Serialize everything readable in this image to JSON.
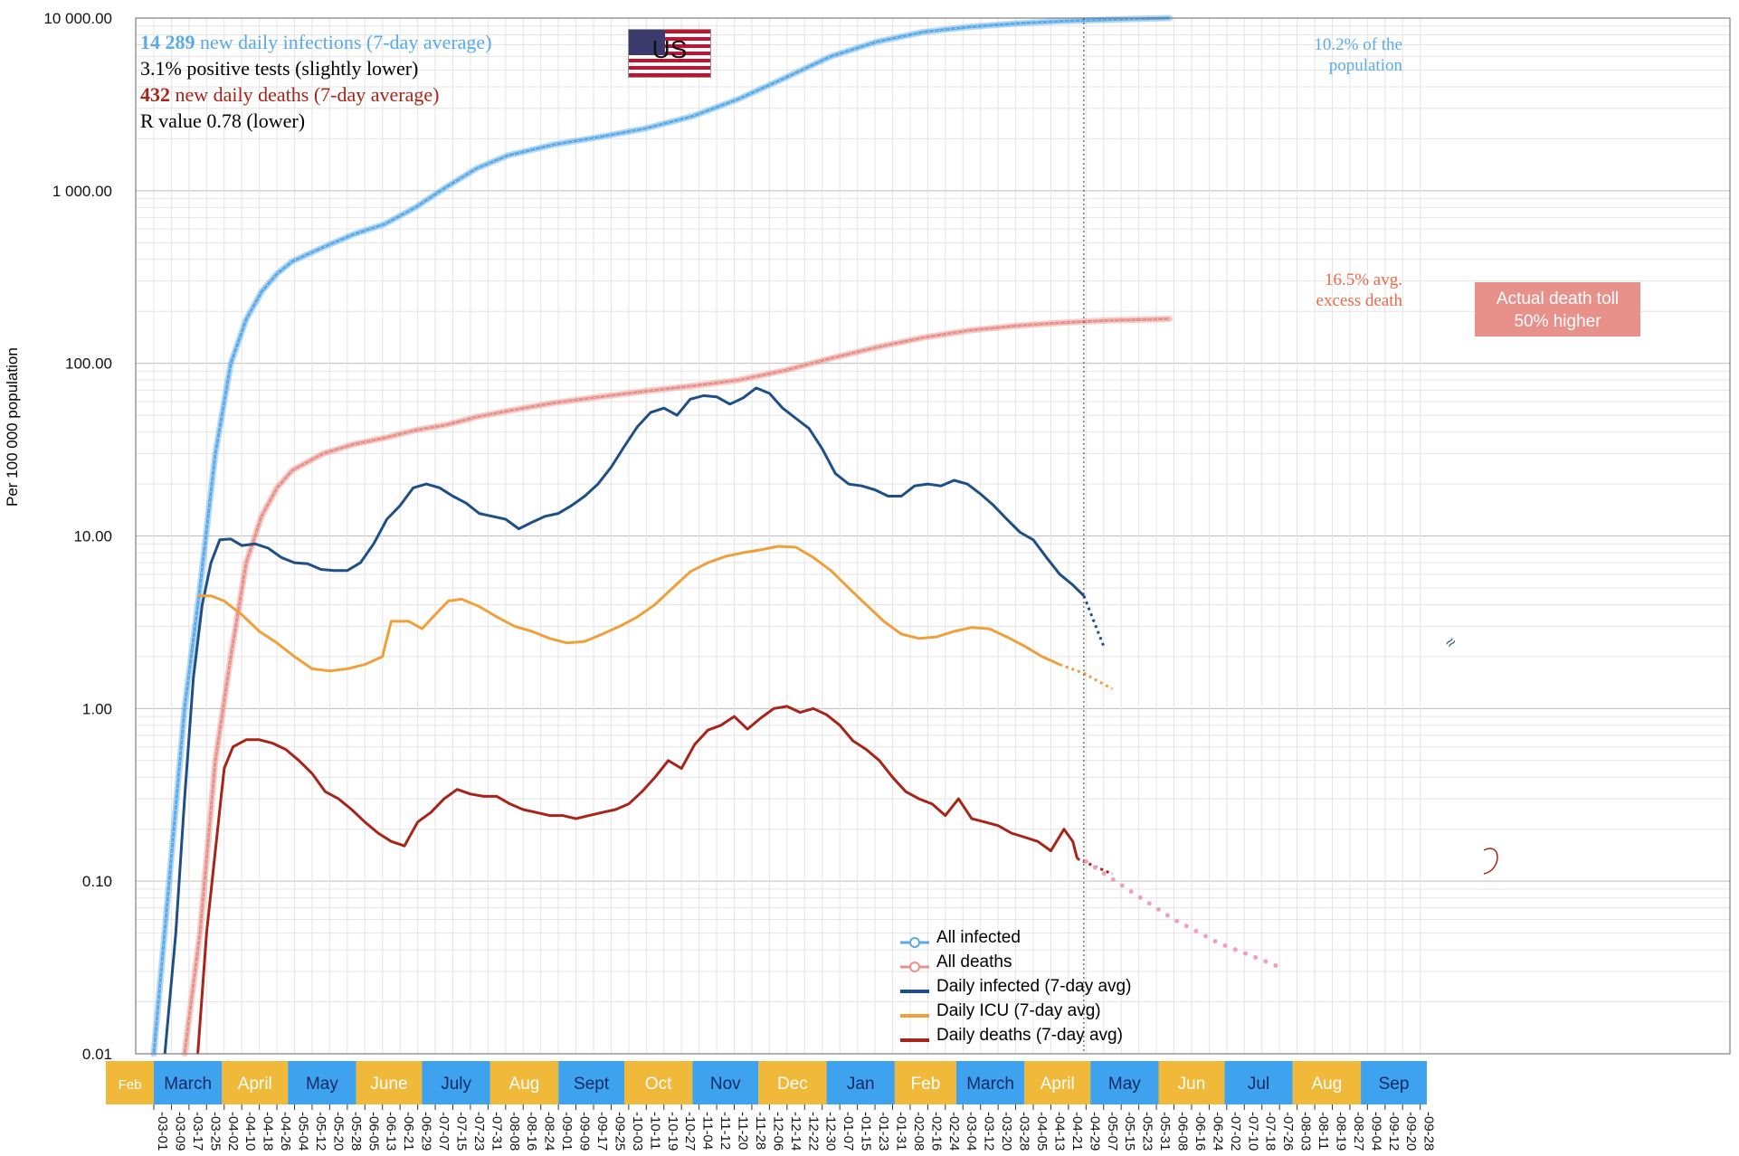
{
  "info": {
    "infections_count": "14 289",
    "infections_text": "new daily infections (7-day average)",
    "positive_text": "3.1% positive tests (slightly lower)",
    "deaths_count": "432",
    "deaths_text": "new daily deaths (7-day average)",
    "r_text": "R value 0.78 (lower)"
  },
  "flag": {
    "label": "US"
  },
  "notes": {
    "population_line1": "10.2% of the",
    "population_line2": "population",
    "excess_line1": "16.5% avg.",
    "excess_line2": "excess death",
    "toll_line1": "Actual death toll",
    "toll_line2": "50% higher"
  },
  "colors": {
    "all_infected": "#5aaae8",
    "all_deaths": "#e8908a",
    "daily_infected": "#1e4f86",
    "daily_icu": "#f0a03a",
    "daily_deaths": "#a82418",
    "month_yellow": "#f0b93a",
    "month_blue": "#3ea2ef"
  },
  "chart_data": {
    "type": "line",
    "title": "",
    "xlabel": "",
    "ylabel": "Per 100 000 population",
    "y_scale": "log",
    "ylim": [
      0.01,
      10000
    ],
    "y_ticks": [
      "10 000.00",
      "1 000.00",
      "100.00",
      "10.00",
      "1.00",
      "0.10",
      "0.01"
    ],
    "months": [
      "Feb",
      "March",
      "April",
      "May",
      "June",
      "July",
      "Aug",
      "Sept",
      "Oct",
      "Nov",
      "Dec",
      "Jan",
      "Feb",
      "March",
      "April",
      "May",
      "Jun",
      "Jul",
      "Aug",
      "Sep"
    ],
    "date_ticks": [
      "03-01",
      "03-09",
      "03-17",
      "03-25",
      "04-02",
      "04-10",
      "04-18",
      "04-26",
      "05-04",
      "05-12",
      "05-20",
      "05-28",
      "06-05",
      "06-13",
      "06-21",
      "06-29",
      "07-07",
      "07-15",
      "07-23",
      "07-31",
      "08-08",
      "08-16",
      "08-24",
      "09-01",
      "09-09",
      "09-17",
      "09-25",
      "10-03",
      "10-11",
      "10-19",
      "10-27",
      "11-04",
      "11-12",
      "11-20",
      "11-28",
      "12-06",
      "12-14",
      "12-22",
      "12-30",
      "01-07",
      "01-15",
      "01-23",
      "01-31",
      "02-08",
      "02-16",
      "02-24",
      "03-04",
      "03-12",
      "03-20",
      "03-28",
      "04-05",
      "04-13",
      "04-21",
      "04-29",
      "05-07",
      "05-15",
      "05-23",
      "05-31",
      "06-08",
      "06-16",
      "06-24",
      "07-02",
      "07-10",
      "07-18",
      "07-26",
      "08-03",
      "08-11",
      "08-19",
      "08-27",
      "09-04",
      "09-12",
      "09-20",
      "09-28"
    ],
    "x_unit": "days since 2020-03-01",
    "series": [
      {
        "name": "All infected",
        "style": "cumulative",
        "points": [
          [
            0,
            0.01
          ],
          [
            7,
            0.1
          ],
          [
            14,
            1
          ],
          [
            21,
            5
          ],
          [
            28,
            30
          ],
          [
            35,
            100
          ],
          [
            42,
            180
          ],
          [
            49,
            260
          ],
          [
            56,
            330
          ],
          [
            63,
            390
          ],
          [
            77,
            470
          ],
          [
            91,
            560
          ],
          [
            105,
            640
          ],
          [
            119,
            800
          ],
          [
            133,
            1050
          ],
          [
            147,
            1350
          ],
          [
            161,
            1600
          ],
          [
            182,
            1850
          ],
          [
            203,
            2050
          ],
          [
            224,
            2300
          ],
          [
            245,
            2700
          ],
          [
            266,
            3400
          ],
          [
            287,
            4500
          ],
          [
            308,
            6000
          ],
          [
            329,
            7300
          ],
          [
            350,
            8300
          ],
          [
            371,
            8900
          ],
          [
            392,
            9300
          ],
          [
            413,
            9600
          ],
          [
            434,
            9800
          ],
          [
            455,
            9950
          ],
          [
            462,
            10000
          ]
        ]
      },
      {
        "name": "All deaths",
        "style": "cumulative",
        "points": [
          [
            14,
            0.01
          ],
          [
            21,
            0.05
          ],
          [
            28,
            0.5
          ],
          [
            35,
            2
          ],
          [
            42,
            7
          ],
          [
            49,
            13
          ],
          [
            56,
            19
          ],
          [
            63,
            24
          ],
          [
            77,
            30
          ],
          [
            91,
            34
          ],
          [
            105,
            37
          ],
          [
            119,
            41
          ],
          [
            133,
            44
          ],
          [
            147,
            49
          ],
          [
            161,
            53
          ],
          [
            182,
            59
          ],
          [
            203,
            64
          ],
          [
            224,
            69
          ],
          [
            245,
            74
          ],
          [
            266,
            80
          ],
          [
            287,
            91
          ],
          [
            308,
            107
          ],
          [
            329,
            124
          ],
          [
            350,
            141
          ],
          [
            371,
            155
          ],
          [
            392,
            165
          ],
          [
            413,
            172
          ],
          [
            434,
            177
          ],
          [
            455,
            180
          ],
          [
            462,
            181
          ]
        ]
      },
      {
        "name": "Daily infected (7-day avg)",
        "points": [
          [
            5,
            0.01
          ],
          [
            10,
            0.05
          ],
          [
            14,
            0.3
          ],
          [
            18,
            1.5
          ],
          [
            22,
            4
          ],
          [
            26,
            7
          ],
          [
            30,
            9.5
          ],
          [
            35,
            9.6
          ],
          [
            40,
            8.8
          ],
          [
            46,
            9
          ],
          [
            52,
            8.5
          ],
          [
            58,
            7.5
          ],
          [
            64,
            7
          ],
          [
            70,
            6.9
          ],
          [
            76,
            6.4
          ],
          [
            82,
            6.3
          ],
          [
            88,
            6.3
          ],
          [
            94,
            7
          ],
          [
            100,
            9
          ],
          [
            106,
            12.5
          ],
          [
            112,
            15
          ],
          [
            118,
            19
          ],
          [
            124,
            20
          ],
          [
            130,
            19
          ],
          [
            136,
            17
          ],
          [
            142,
            15.5
          ],
          [
            148,
            13.5
          ],
          [
            154,
            13
          ],
          [
            160,
            12.5
          ],
          [
            166,
            11
          ],
          [
            172,
            12
          ],
          [
            178,
            13
          ],
          [
            184,
            13.5
          ],
          [
            190,
            15
          ],
          [
            196,
            17
          ],
          [
            202,
            20
          ],
          [
            208,
            25
          ],
          [
            214,
            33
          ],
          [
            220,
            43
          ],
          [
            226,
            52
          ],
          [
            232,
            55
          ],
          [
            238,
            50
          ],
          [
            244,
            62
          ],
          [
            250,
            65
          ],
          [
            256,
            64
          ],
          [
            262,
            58
          ],
          [
            268,
            63
          ],
          [
            274,
            72
          ],
          [
            280,
            67
          ],
          [
            286,
            55
          ],
          [
            292,
            48
          ],
          [
            298,
            42
          ],
          [
            304,
            32
          ],
          [
            310,
            23
          ],
          [
            316,
            20
          ],
          [
            322,
            19.5
          ],
          [
            328,
            18.5
          ],
          [
            334,
            17
          ],
          [
            340,
            17
          ],
          [
            346,
            19.5
          ],
          [
            352,
            20
          ],
          [
            358,
            19.5
          ],
          [
            364,
            21
          ],
          [
            370,
            20
          ],
          [
            376,
            17.5
          ],
          [
            382,
            15
          ],
          [
            388,
            12.5
          ],
          [
            394,
            10.5
          ],
          [
            400,
            9.5
          ],
          [
            406,
            7.5
          ],
          [
            412,
            6
          ],
          [
            418,
            5.2
          ],
          [
            423,
            4.5
          ],
          [
            432,
            2.3
          ]
        ],
        "projection_from": 423
      },
      {
        "name": "Daily ICU (7-day avg)",
        "points": [
          [
            20,
            4.5
          ],
          [
            26,
            4.5
          ],
          [
            32,
            4.2
          ],
          [
            40,
            3.5
          ],
          [
            48,
            2.8
          ],
          [
            56,
            2.4
          ],
          [
            64,
            2
          ],
          [
            72,
            1.7
          ],
          [
            80,
            1.65
          ],
          [
            88,
            1.7
          ],
          [
            96,
            1.8
          ],
          [
            104,
            2
          ],
          [
            108,
            3.2
          ],
          [
            116,
            3.2
          ],
          [
            122,
            2.9
          ],
          [
            128,
            3.5
          ],
          [
            134,
            4.2
          ],
          [
            140,
            4.3
          ],
          [
            148,
            3.9
          ],
          [
            156,
            3.4
          ],
          [
            164,
            3
          ],
          [
            172,
            2.8
          ],
          [
            180,
            2.55
          ],
          [
            188,
            2.4
          ],
          [
            196,
            2.45
          ],
          [
            204,
            2.7
          ],
          [
            212,
            3
          ],
          [
            220,
            3.4
          ],
          [
            228,
            4
          ],
          [
            236,
            5
          ],
          [
            244,
            6.2
          ],
          [
            252,
            7
          ],
          [
            260,
            7.6
          ],
          [
            268,
            8
          ],
          [
            276,
            8.3
          ],
          [
            284,
            8.7
          ],
          [
            292,
            8.6
          ],
          [
            300,
            7.5
          ],
          [
            308,
            6.3
          ],
          [
            316,
            5
          ],
          [
            324,
            4
          ],
          [
            332,
            3.2
          ],
          [
            340,
            2.7
          ],
          [
            348,
            2.55
          ],
          [
            356,
            2.6
          ],
          [
            364,
            2.8
          ],
          [
            372,
            2.95
          ],
          [
            380,
            2.9
          ],
          [
            388,
            2.6
          ],
          [
            396,
            2.3
          ],
          [
            404,
            2
          ],
          [
            412,
            1.8
          ],
          [
            423,
            1.6
          ],
          [
            436,
            1.3
          ]
        ],
        "projection_from": 412
      },
      {
        "name": "Daily deaths (7-day avg)",
        "points": [
          [
            20,
            0.01
          ],
          [
            24,
            0.05
          ],
          [
            28,
            0.15
          ],
          [
            32,
            0.45
          ],
          [
            36,
            0.6
          ],
          [
            42,
            0.66
          ],
          [
            48,
            0.66
          ],
          [
            54,
            0.63
          ],
          [
            60,
            0.58
          ],
          [
            66,
            0.5
          ],
          [
            72,
            0.42
          ],
          [
            78,
            0.33
          ],
          [
            84,
            0.3
          ],
          [
            90,
            0.26
          ],
          [
            96,
            0.22
          ],
          [
            102,
            0.19
          ],
          [
            108,
            0.17
          ],
          [
            114,
            0.16
          ],
          [
            120,
            0.22
          ],
          [
            126,
            0.25
          ],
          [
            132,
            0.3
          ],
          [
            138,
            0.34
          ],
          [
            144,
            0.32
          ],
          [
            150,
            0.31
          ],
          [
            156,
            0.31
          ],
          [
            162,
            0.28
          ],
          [
            168,
            0.26
          ],
          [
            174,
            0.25
          ],
          [
            180,
            0.24
          ],
          [
            186,
            0.24
          ],
          [
            192,
            0.23
          ],
          [
            198,
            0.24
          ],
          [
            204,
            0.25
          ],
          [
            210,
            0.26
          ],
          [
            216,
            0.28
          ],
          [
            222,
            0.33
          ],
          [
            228,
            0.4
          ],
          [
            234,
            0.5
          ],
          [
            240,
            0.45
          ],
          [
            246,
            0.62
          ],
          [
            252,
            0.75
          ],
          [
            258,
            0.8
          ],
          [
            264,
            0.9
          ],
          [
            270,
            0.76
          ],
          [
            276,
            0.88
          ],
          [
            282,
            1.0
          ],
          [
            288,
            1.03
          ],
          [
            294,
            0.95
          ],
          [
            300,
            1.0
          ],
          [
            306,
            0.92
          ],
          [
            312,
            0.8
          ],
          [
            318,
            0.65
          ],
          [
            324,
            0.58
          ],
          [
            330,
            0.5
          ],
          [
            336,
            0.4
          ],
          [
            342,
            0.33
          ],
          [
            348,
            0.3
          ],
          [
            354,
            0.28
          ],
          [
            360,
            0.24
          ],
          [
            366,
            0.3
          ],
          [
            372,
            0.23
          ],
          [
            378,
            0.22
          ],
          [
            384,
            0.21
          ],
          [
            390,
            0.19
          ],
          [
            396,
            0.18
          ],
          [
            402,
            0.17
          ],
          [
            408,
            0.15
          ],
          [
            414,
            0.2
          ],
          [
            418,
            0.17
          ],
          [
            420,
            0.135
          ],
          [
            436,
            0.11
          ]
        ],
        "projection_from": 420
      },
      {
        "name": "Daily deaths projection",
        "points": [
          [
            424,
            0.13
          ],
          [
            444,
            0.088
          ],
          [
            464,
            0.06
          ],
          [
            484,
            0.044
          ],
          [
            504,
            0.035
          ],
          [
            514,
            0.031
          ]
        ]
      }
    ],
    "legend": [
      "All infected",
      "All deaths",
      "Daily infected (7-day avg)",
      "Daily ICU (7-day avg)",
      "Daily deaths (7-day avg)"
    ],
    "legend_position": "bottom-center",
    "grid": true,
    "today_marker_day": 423
  }
}
